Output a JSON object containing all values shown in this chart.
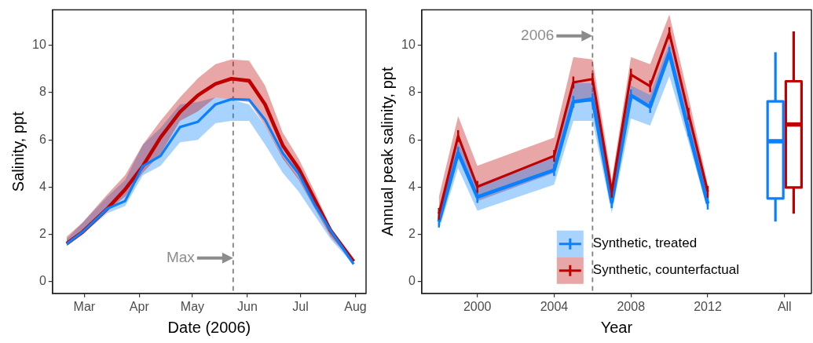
{
  "chart_data": [
    {
      "type": "line",
      "xlabel": "Date (2006)",
      "ylabel": "Salinity, ppt",
      "x": [
        "2006-02-19",
        "2006-02-28",
        "2006-03-14",
        "2006-03-24",
        "2006-04-03",
        "2006-04-13",
        "2006-04-24",
        "2006-05-04",
        "2006-05-14",
        "2006-05-23",
        "2006-06-02",
        "2006-06-11",
        "2006-06-21",
        "2006-06-30",
        "2006-07-09",
        "2006-07-18",
        "2006-07-31"
      ],
      "series": [
        {
          "color": "#c00000",
          "values": [
            1.61,
            2.1,
            3.09,
            3.9,
            4.89,
            6.1,
            7.18,
            7.88,
            8.37,
            8.59,
            8.5,
            7.5,
            5.76,
            4.78,
            3.47,
            2.16,
            0.85
          ],
          "lower": [
            1.5,
            2.0,
            3.0,
            3.6,
            4.6,
            5.4,
            6.8,
            7.2,
            7.8,
            7.7,
            7.6,
            6.6,
            5.2,
            4.3,
            3.1,
            1.9,
            0.8
          ],
          "upper": [
            1.9,
            2.5,
            3.7,
            4.5,
            5.8,
            6.8,
            7.8,
            8.6,
            9.2,
            9.4,
            9.35,
            8.3,
            6.3,
            5.2,
            3.8,
            2.3,
            0.9
          ]
        },
        {
          "color": "#0a80ff",
          "values": [
            1.59,
            2.1,
            3.09,
            3.41,
            4.89,
            5.32,
            6.54,
            6.76,
            7.5,
            7.72,
            7.7,
            6.85,
            5.43,
            4.56,
            3.25,
            2.16,
            0.74
          ],
          "lower": [
            1.5,
            2.0,
            2.9,
            3.2,
            4.5,
            4.9,
            5.9,
            6.0,
            6.7,
            6.8,
            6.8,
            5.8,
            4.6,
            3.8,
            2.8,
            1.8,
            0.7
          ],
          "upper": [
            1.8,
            2.5,
            3.6,
            4.3,
            5.8,
            6.5,
            7.5,
            7.6,
            7.8,
            7.7,
            7.5,
            6.6,
            5.3,
            4.4,
            3.2,
            2.1,
            0.8
          ]
        }
      ],
      "xlim": [
        "2006-02-11",
        "2006-08-07"
      ],
      "xticks": [
        {
          "value": "2006-03-01",
          "label": "Mar"
        },
        {
          "value": "2006-04-01",
          "label": "Apr"
        },
        {
          "value": "2006-05-01",
          "label": "May"
        },
        {
          "value": "2006-06-01",
          "label": "Jun"
        },
        {
          "value": "2006-07-01",
          "label": "Jul"
        },
        {
          "value": "2006-08-01",
          "label": "Aug"
        }
      ],
      "ylim": [
        -0.5,
        11.5
      ],
      "yticks": [
        0,
        2,
        4,
        6,
        8,
        10
      ],
      "ref_lines": [
        {
          "axis": "x",
          "value": "2006-05-24",
          "color": "#808080",
          "line_style": "dashed"
        }
      ],
      "annotations": [
        {
          "text": "Max",
          "x": "2006-05-24",
          "y": 1
        }
      ],
      "grid": false,
      "legend": false
    },
    {
      "type": "line",
      "xlabel": "Year",
      "ylabel": "Annual peak salinity, ppt",
      "x": [
        1998,
        1999,
        2000,
        2004,
        2005,
        2006,
        2007,
        2008,
        2009,
        2010,
        2011,
        2012
      ],
      "series": [
        {
          "name": "Synthetic, treated",
          "color": "#0a80ff",
          "values": [
            2.54,
            5.45,
            3.58,
            4.72,
            7.61,
            7.72,
            3.36,
            7.88,
            7.39,
            9.68,
            6.4,
            3.3
          ],
          "errors": [
            0.25,
            0.25,
            0.25,
            0.25,
            0.25,
            0.25,
            0.25,
            0.25,
            0.25,
            0.25,
            0.25,
            0.25
          ],
          "lower": [
            2.2,
            4.8,
            3.0,
            4.1,
            6.8,
            6.8,
            2.9,
            6.9,
            6.6,
            8.7,
            5.9,
            3.0
          ],
          "upper": [
            2.9,
            5.9,
            4.1,
            5.3,
            8.4,
            8.4,
            3.8,
            8.3,
            7.9,
            10.1,
            6.9,
            3.6
          ]
        },
        {
          "name": "Synthetic, counterfactual",
          "color": "#c00000",
          "values": [
            2.87,
            6.16,
            4.01,
            5.32,
            8.43,
            8.57,
            3.8,
            8.76,
            8.27,
            10.52,
            7.1,
            3.8
          ],
          "errors": [
            0.25,
            0.25,
            0.25,
            0.25,
            0.25,
            0.25,
            0.25,
            0.25,
            0.25,
            0.25,
            0.25,
            0.25
          ],
          "lower": [
            2.6,
            5.5,
            3.4,
            4.6,
            7.6,
            7.6,
            3.3,
            7.9,
            7.5,
            9.7,
            6.5,
            3.5
          ],
          "upper": [
            3.6,
            7.0,
            4.9,
            6.1,
            9.5,
            9.4,
            4.3,
            9.5,
            9.2,
            11.3,
            7.8,
            4.1
          ]
        },
        {
          "type": "box",
          "color": "#0a80ff",
          "x": [
            2016
          ],
          "boxes": [
            {
              "low": 2.54,
              "q1": 3.52,
              "median": 5.94,
              "q3": 7.63,
              "high": 9.71
            }
          ]
        },
        {
          "type": "box",
          "color": "#c00000",
          "x": [
            2016
          ],
          "boxes": [
            {
              "low": 2.87,
              "q1": 3.98,
              "median": 6.65,
              "q3": 8.48,
              "high": 10.59
            }
          ]
        }
      ],
      "xlim": [
        1997.1,
        2017.4
      ],
      "xticks": [
        2000,
        2004,
        2008,
        2012,
        {
          "value": 2016,
          "label": "All"
        }
      ],
      "ylim": [
        -0.5,
        11.5
      ],
      "yticks": [
        0,
        2,
        4,
        6,
        8,
        10
      ],
      "ref_lines": [
        {
          "axis": "x",
          "value": 2006,
          "color": "#808080",
          "line_style": "dashed"
        }
      ],
      "annotations": [
        {
          "text": "2006",
          "x": 2006,
          "y": 10.4
        }
      ],
      "grid": false,
      "legend": "bottom"
    }
  ]
}
